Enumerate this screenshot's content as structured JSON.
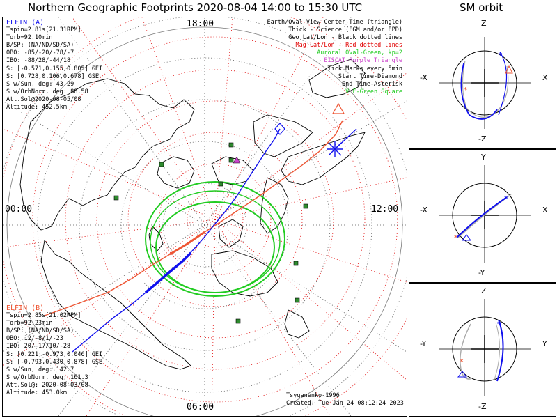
{
  "title": "Northern Geographic Footprints 2020-08-04 14:00 to 15:30 UTC",
  "side_title": "SM orbit",
  "hours": {
    "top": "18:00",
    "left": "00:00",
    "right": "12:00",
    "bottom": "06:00"
  },
  "legend": [
    {
      "text": "Earth/Oval View Center Time (triangle)",
      "color": "#000000"
    },
    {
      "text": "Thick - Science (FGM and/or EPD)",
      "color": "#000000"
    },
    {
      "text": "Geo Lat/Lon - Black dotted lines",
      "color": "#000000"
    },
    {
      "text": "Mag Lat/Lon - Red dotted lines",
      "color": "#e00000"
    },
    {
      "text": "Auroral Oval-Green, kp=2",
      "color": "#22cc22"
    },
    {
      "text": "EISCAT-Purple Triangle",
      "color": "#cc44cc"
    },
    {
      "text": "Tick Marks every 5min",
      "color": "#000000"
    },
    {
      "text": "Start Time-Diamond",
      "color": "#000000"
    },
    {
      "text": "End Time-Asterisk",
      "color": "#000000"
    },
    {
      "text": "VLF-Green Square",
      "color": "#22cc22"
    }
  ],
  "elfin_a": {
    "name": "ELFIN (A)",
    "color": "#1010ee",
    "lines": [
      "Tspin=2.81s[21.31RPM]",
      "Torb=92.10min",
      "B/SP: (NA/ND/SD/SA)",
      "OBO: -85/-20/-78/-7",
      "IBO: -88/28/-44/18",
      "S: [-0.571,0.155,0.805] GEI",
      "S: [0.728,0.106,0.678] GSE",
      "S w/Sun, deg: 43.29",
      "S w/OrbNorm, deg: 88.58",
      "Att.Sol@2020-08-05/08",
      "Altitude: 452.5km"
    ]
  },
  "elfin_b": {
    "name": "ELFIN (B)",
    "color": "#ee5533",
    "lines": [
      "Tspin=2.85s[21.02RPM]",
      "Torb=92.23min",
      "B/SP: (NA/ND/SD/SA)",
      "OBO: 12/-8/1/-23",
      "IBO: 20/-17/10/-28",
      "S: [0.221,-0.973,0.046] GEI",
      "S: [-0.793,0.430,0.878] GSE",
      "S w/Sun, deg: 142.7",
      "S w/OrbNorm, deg: 161.3",
      "Att.Sol@: 2020-08-03/08",
      "Altitude: 453.0km"
    ]
  },
  "footer": {
    "model": "Tsyganenko-1996",
    "created": "Created: Tue Jan 24 08:12:24 2023"
  },
  "orbit_panels": [
    {
      "top": "Z",
      "bottom": "-Z",
      "left": "-X",
      "right": "X"
    },
    {
      "top": "Y",
      "bottom": "-Y",
      "left": "-X",
      "right": "X"
    },
    {
      "top": "Z",
      "bottom": "-Z",
      "left": "-Y",
      "right": "Y"
    }
  ]
}
